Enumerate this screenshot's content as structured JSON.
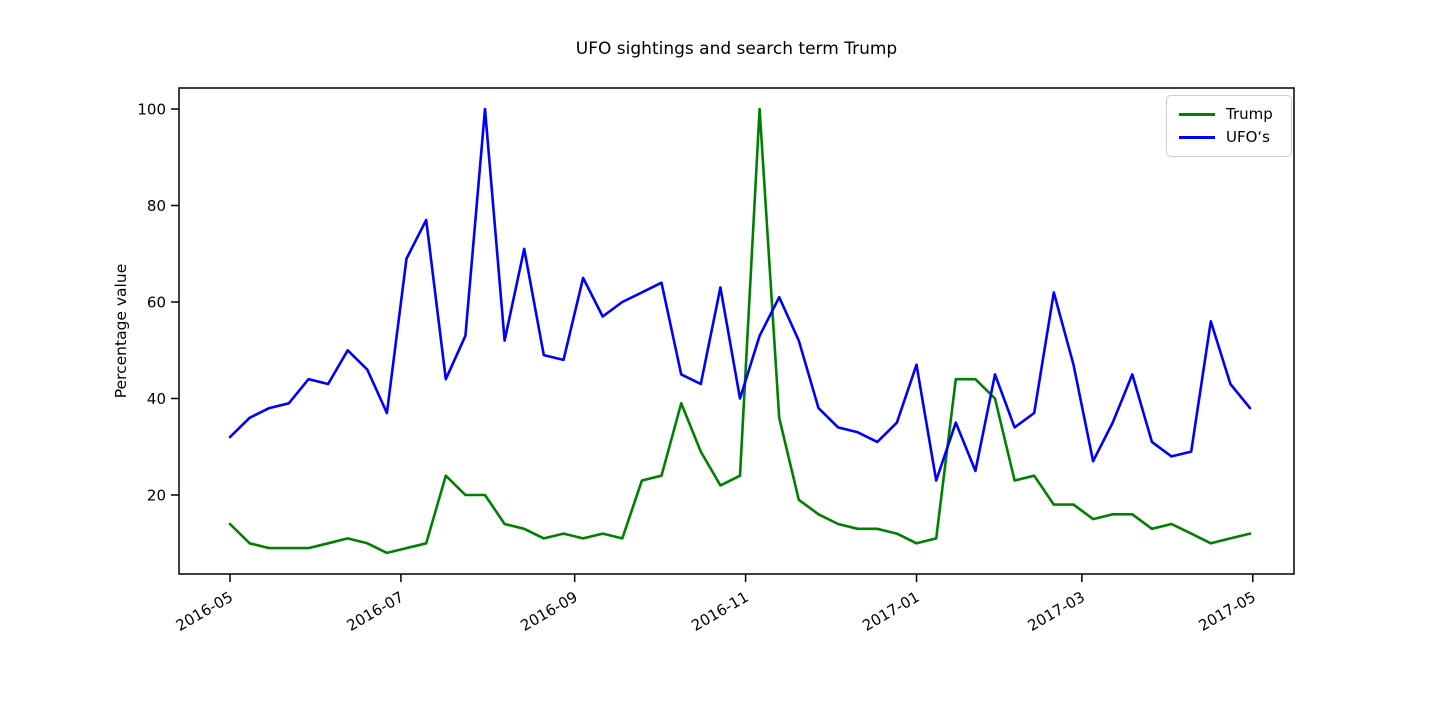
{
  "figure": {
    "background": "#ffffff",
    "title": "UFO sightings and search term Trump",
    "ylabel": "Percentage value"
  },
  "chart_data": {
    "type": "line",
    "title": "UFO sightings and search term Trump",
    "xlabel": "",
    "ylabel": "Percentage value",
    "grid": false,
    "legend_position": "upper right",
    "ylim": [
      3.5,
      104.5
    ],
    "y_ticks": [
      20,
      40,
      60,
      80,
      100
    ],
    "x_ticks": [
      "2016-05",
      "2016-07",
      "2016-09",
      "2016-11",
      "2017-01",
      "2017-03",
      "2017-05"
    ],
    "x": [
      "2016-05-01",
      "2016-05-08",
      "2016-05-15",
      "2016-05-22",
      "2016-05-29",
      "2016-06-05",
      "2016-06-12",
      "2016-06-19",
      "2016-06-26",
      "2016-07-03",
      "2016-07-10",
      "2016-07-17",
      "2016-07-24",
      "2016-07-31",
      "2016-08-07",
      "2016-08-14",
      "2016-08-21",
      "2016-08-28",
      "2016-09-04",
      "2016-09-11",
      "2016-09-18",
      "2016-09-25",
      "2016-10-02",
      "2016-10-09",
      "2016-10-16",
      "2016-10-23",
      "2016-10-30",
      "2016-11-06",
      "2016-11-13",
      "2016-11-20",
      "2016-11-27",
      "2016-12-04",
      "2016-12-11",
      "2016-12-18",
      "2016-12-25",
      "2017-01-01",
      "2017-01-08",
      "2017-01-15",
      "2017-01-22",
      "2017-01-29",
      "2017-02-05",
      "2017-02-12",
      "2017-02-19",
      "2017-02-26",
      "2017-03-05",
      "2017-03-12",
      "2017-03-19",
      "2017-03-26",
      "2017-04-02",
      "2017-04-09",
      "2017-04-16",
      "2017-04-23",
      "2017-04-30"
    ],
    "series": [
      {
        "name": "Trump",
        "color": "#008000",
        "values": [
          14,
          10,
          9,
          9,
          9,
          10,
          11,
          10,
          8,
          9,
          10,
          24,
          20,
          20,
          14,
          13,
          11,
          12,
          11,
          12,
          11,
          23,
          24,
          39,
          29,
          22,
          24,
          100,
          36,
          19,
          16,
          14,
          13,
          13,
          12,
          10,
          11,
          44,
          44,
          40,
          23,
          24,
          18,
          18,
          15,
          16,
          16,
          13,
          14,
          12,
          10,
          11,
          12
        ]
      },
      {
        "name": "UFO‘s",
        "color": "#0000ff",
        "values": [
          32,
          36,
          38,
          39,
          44,
          43,
          50,
          46,
          37,
          69,
          77,
          44,
          53,
          100,
          52,
          71,
          49,
          48,
          65,
          57,
          60,
          62,
          64,
          45,
          43,
          63,
          40,
          53,
          61,
          52,
          38,
          34,
          33,
          31,
          35,
          47,
          23,
          35,
          25,
          45,
          34,
          37,
          62,
          47,
          27,
          35,
          45,
          31,
          28,
          29,
          56,
          43,
          38
        ]
      }
    ]
  }
}
